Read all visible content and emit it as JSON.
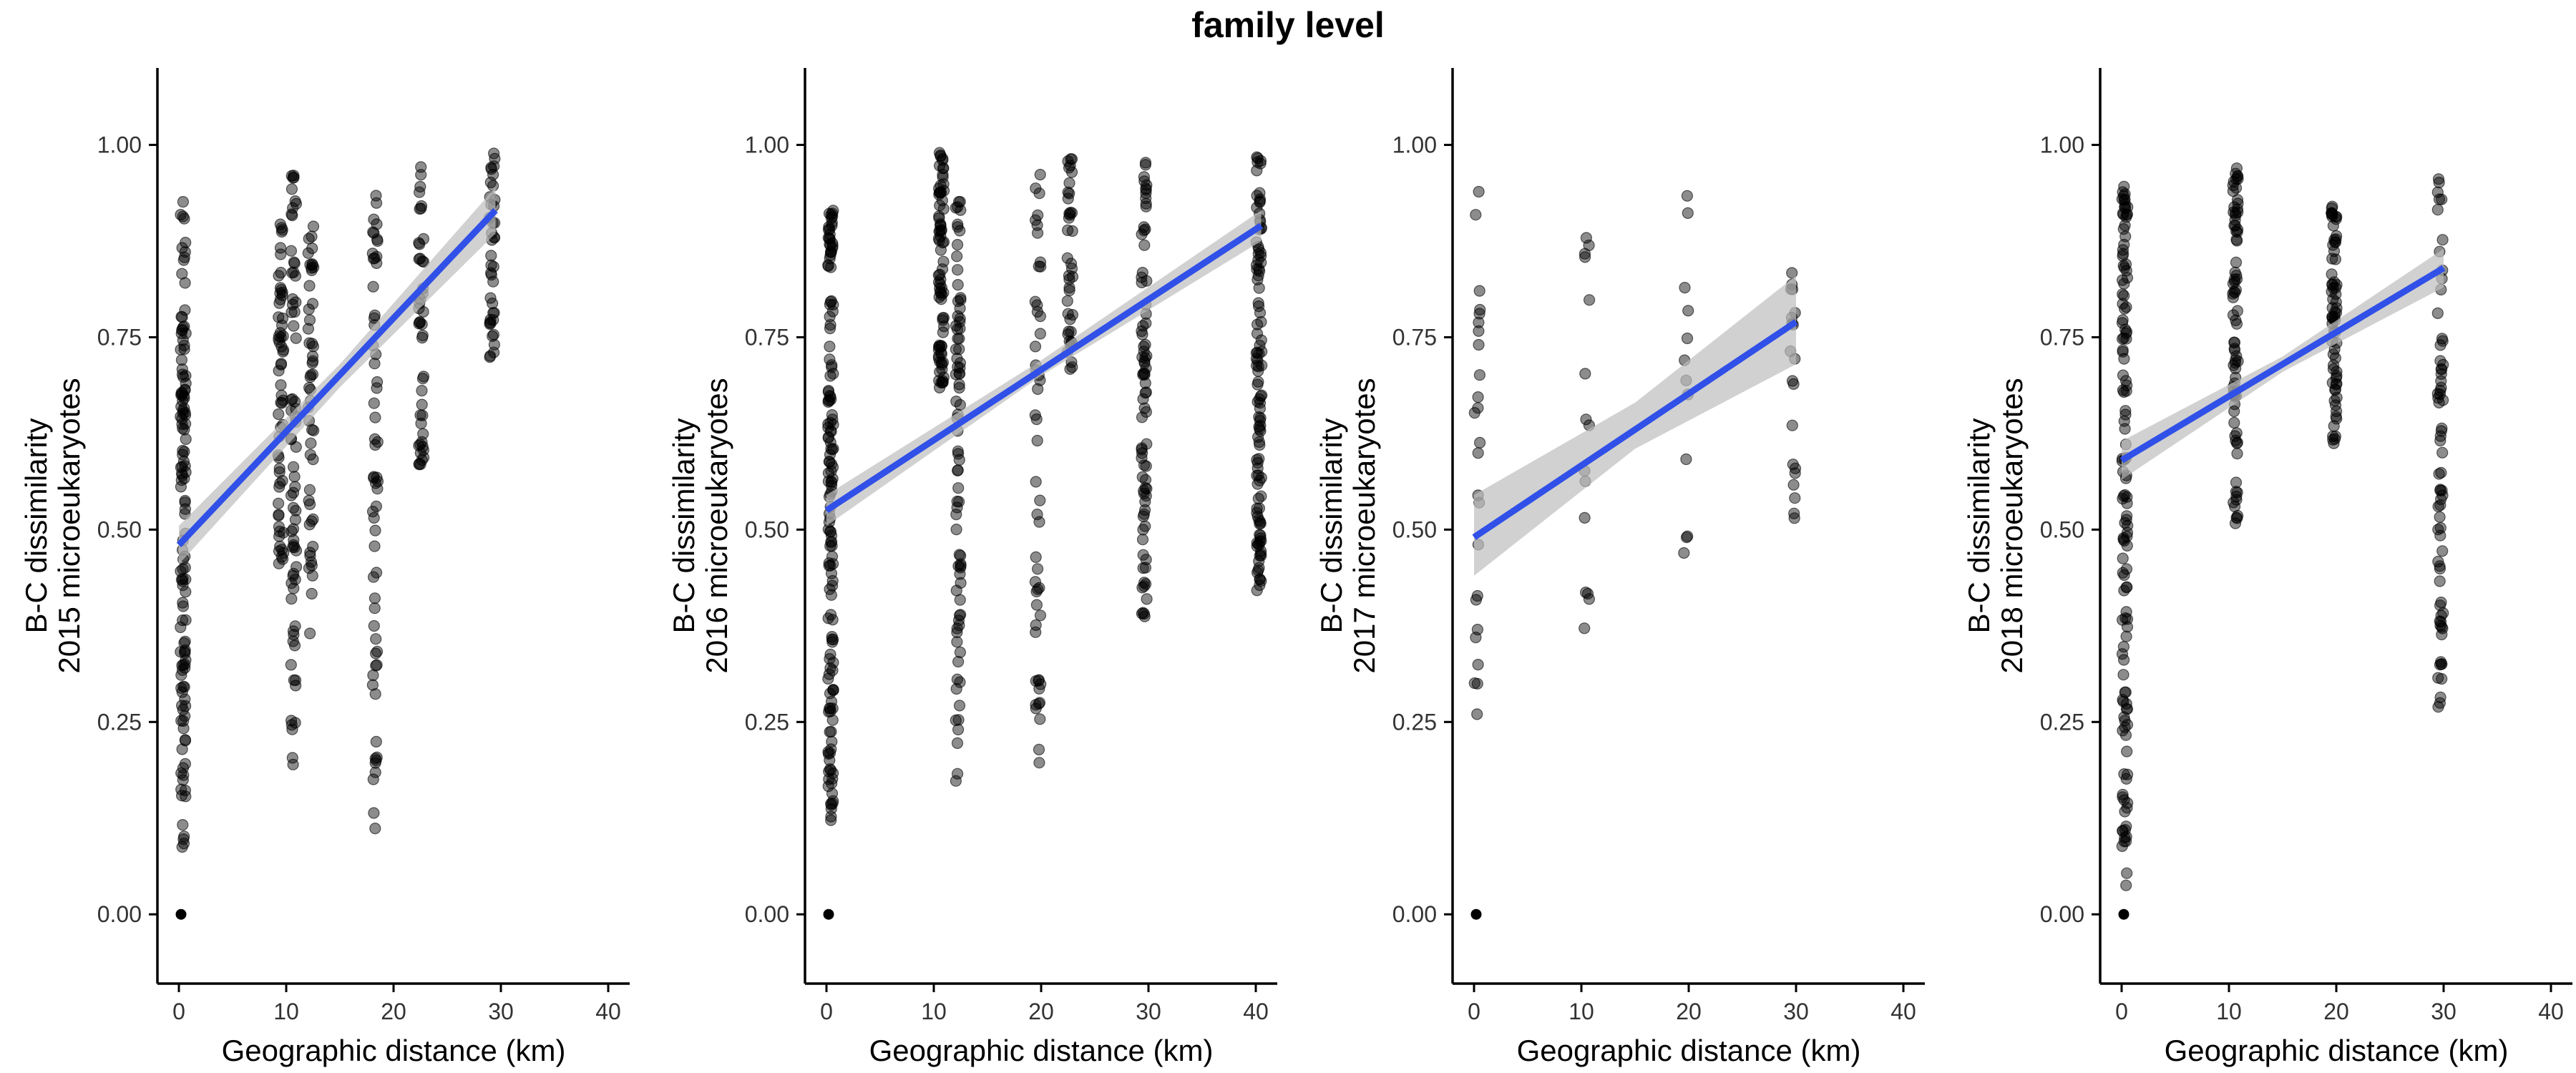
{
  "title": "family level",
  "colors": {
    "points": "#000000",
    "fit_line": "#3050E8",
    "ci_band": "#BEBEBE"
  },
  "chart_data": [
    {
      "type": "scatter",
      "title": "",
      "xlabel": "Geographic distance (km)",
      "ylabel_lines": [
        "B-C dissimilarity",
        "2015 microeukaryotes"
      ],
      "xlim": [
        -2,
        42
      ],
      "ylim": [
        -0.09,
        1.1
      ],
      "x_ticks": [
        0,
        10,
        20,
        30,
        40
      ],
      "y_ticks": [
        0.0,
        0.25,
        0.5,
        0.75,
        1.0
      ],
      "y_tick_labels": [
        "0.00",
        "0.25",
        "0.50",
        "0.75",
        "1.00"
      ],
      "point_alpha": 0.45,
      "point_groups": [
        {
          "x": 0.4,
          "n": 130,
          "ymin": 0.08,
          "ymax": 0.93
        },
        {
          "x": 9.5,
          "n": 60,
          "ymin": 0.45,
          "ymax": 0.9
        },
        {
          "x": 10.7,
          "n": 70,
          "ymin": 0.19,
          "ymax": 0.99
        },
        {
          "x": 12.3,
          "n": 50,
          "ymin": 0.36,
          "ymax": 0.9
        },
        {
          "x": 18.3,
          "n": 60,
          "ymin": 0.11,
          "ymax": 0.95
        },
        {
          "x": 22.6,
          "n": 45,
          "ymin": 0.58,
          "ymax": 0.98
        },
        {
          "x": 29.2,
          "n": 40,
          "ymin": 0.72,
          "ymax": 0.99
        }
      ],
      "extra_points": [
        [
          0.2,
          0.0
        ]
      ],
      "fit": {
        "x": [
          0,
          29.5
        ],
        "y": [
          0.48,
          0.915
        ],
        "ci": [
          [
            0,
            0.455,
            0.505
          ],
          [
            15,
            0.685,
            0.715
          ],
          [
            29.5,
            0.885,
            0.945
          ]
        ]
      }
    },
    {
      "type": "scatter",
      "title": "",
      "xlabel": "Geographic distance (km)",
      "ylabel_lines": [
        "B-C dissimilarity",
        "2016 microeukaryotes"
      ],
      "xlim": [
        -2,
        42
      ],
      "ylim": [
        -0.09,
        1.1
      ],
      "x_ticks": [
        0,
        10,
        20,
        30,
        40
      ],
      "y_ticks": [
        0.0,
        0.25,
        0.5,
        0.75,
        1.0
      ],
      "y_tick_labels": [
        "0.00",
        "0.25",
        "0.50",
        "0.75",
        "1.00"
      ],
      "point_alpha": 0.45,
      "point_groups": [
        {
          "x": 0.4,
          "n": 150,
          "ymin": 0.12,
          "ymax": 0.94
        },
        {
          "x": 10.7,
          "n": 80,
          "ymin": 0.68,
          "ymax": 0.99
        },
        {
          "x": 12.3,
          "n": 80,
          "ymin": 0.17,
          "ymax": 0.93
        },
        {
          "x": 19.7,
          "n": 50,
          "ymin": 0.16,
          "ymax": 0.99
        },
        {
          "x": 22.7,
          "n": 40,
          "ymin": 0.7,
          "ymax": 0.99
        },
        {
          "x": 29.6,
          "n": 80,
          "ymin": 0.38,
          "ymax": 0.99
        },
        {
          "x": 40.3,
          "n": 110,
          "ymin": 0.42,
          "ymax": 0.99
        }
      ],
      "extra_points": [
        [
          0.2,
          0.0
        ]
      ],
      "fit": {
        "x": [
          0,
          40.5
        ],
        "y": [
          0.525,
          0.895
        ],
        "ci": [
          [
            0,
            0.505,
            0.545
          ],
          [
            20,
            0.7,
            0.72
          ],
          [
            40.5,
            0.875,
            0.915
          ]
        ]
      }
    },
    {
      "type": "scatter",
      "title": "",
      "xlabel": "Geographic distance (km)",
      "ylabel_lines": [
        "B-C dissimilarity",
        "2017 microeukaryotes"
      ],
      "xlim": [
        -2,
        42
      ],
      "ylim": [
        -0.09,
        1.1
      ],
      "x_ticks": [
        0,
        10,
        20,
        30,
        40
      ],
      "y_ticks": [
        0.0,
        0.25,
        0.5,
        0.75,
        1.0
      ],
      "y_tick_labels": [
        "0.00",
        "0.25",
        "0.50",
        "0.75",
        "1.00"
      ],
      "point_alpha": 0.45,
      "point_groups": [
        {
          "x": 0.3,
          "n": 25,
          "ymin": 0.26,
          "ymax": 0.95
        },
        {
          "x": 10.5,
          "n": 15,
          "ymin": 0.37,
          "ymax": 0.96
        },
        {
          "x": 19.7,
          "n": 12,
          "ymin": 0.43,
          "ymax": 0.96
        },
        {
          "x": 29.7,
          "n": 20,
          "ymin": 0.51,
          "ymax": 0.85
        }
      ],
      "extra_points": [
        [
          0.2,
          0.0
        ]
      ],
      "fit": {
        "x": [
          0,
          30
        ],
        "y": [
          0.49,
          0.77
        ],
        "ci": [
          [
            0,
            0.44,
            0.545
          ],
          [
            15,
            0.605,
            0.665
          ],
          [
            30,
            0.715,
            0.83
          ]
        ]
      }
    },
    {
      "type": "scatter",
      "title": "",
      "xlabel": "Geographic distance (km)",
      "ylabel_lines": [
        "B-C dissimilarity",
        "2018 microeukaryotes"
      ],
      "xlim": [
        -2,
        42
      ],
      "ylim": [
        -0.09,
        1.1
      ],
      "x_ticks": [
        0,
        10,
        20,
        30,
        40
      ],
      "y_ticks": [
        0.0,
        0.25,
        0.5,
        0.75,
        1.0
      ],
      "y_tick_labels": [
        "0.00",
        "0.25",
        "0.50",
        "0.75",
        "1.00"
      ],
      "point_alpha": 0.45,
      "point_groups": [
        {
          "x": 0.3,
          "n": 130,
          "ymin": 0.03,
          "ymax": 0.95
        },
        {
          "x": 10.6,
          "n": 80,
          "ymin": 0.5,
          "ymax": 0.98
        },
        {
          "x": 19.8,
          "n": 70,
          "ymin": 0.61,
          "ymax": 0.92
        },
        {
          "x": 29.7,
          "n": 70,
          "ymin": 0.26,
          "ymax": 0.97
        }
      ],
      "extra_points": [
        [
          0.2,
          0.0
        ]
      ],
      "fit": {
        "x": [
          0,
          30
        ],
        "y": [
          0.59,
          0.84
        ],
        "ci": [
          [
            0,
            0.565,
            0.615
          ],
          [
            15,
            0.705,
            0.725
          ],
          [
            30,
            0.815,
            0.865
          ]
        ]
      }
    }
  ]
}
